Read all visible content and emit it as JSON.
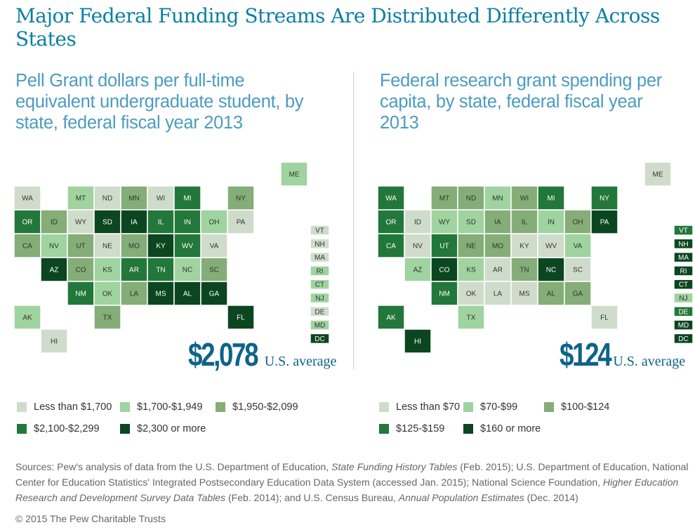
{
  "title": "Major Federal Funding Streams Are Distributed Differently Across States",
  "colors": [
    "#d0dccb",
    "#9fd39f",
    "#85ad77",
    "#22773a",
    "#0b4620"
  ],
  "text_dark_threshold": 3,
  "panels": [
    {
      "subtitle": "Pell Grant dollars per full-time equivalent undergraduate student, by state, federal fiscal year 2013",
      "average_value": "$2,078",
      "average_label": "U.S. average",
      "legend": [
        "Less than $1,700",
        "$1,700-$1,949",
        "$1,950-$2,099",
        "$2,100-$2,299",
        "$2,300 or more"
      ],
      "states": {
        "WA": 0,
        "OR": 3,
        "CA": 2,
        "NV": 1,
        "ID": 2,
        "MT": 1,
        "WY": 0,
        "UT": 2,
        "AZ": 4,
        "CO": 2,
        "NM": 3,
        "ND": 0,
        "SD": 4,
        "NE": 0,
        "KS": 1,
        "OK": 1,
        "TX": 2,
        "MN": 2,
        "IA": 4,
        "MO": 2,
        "AR": 3,
        "LA": 2,
        "WI": 0,
        "IL": 3,
        "MI": 3,
        "IN": 3,
        "OH": 1,
        "KY": 4,
        "TN": 3,
        "MS": 4,
        "AL": 4,
        "GA": 4,
        "FL": 4,
        "SC": 2,
        "NC": 1,
        "VA": 0,
        "WV": 3,
        "PA": 0,
        "NY": 2,
        "ME": 1,
        "AK": 1,
        "HI": 0
      },
      "side_states": [
        [
          "VT",
          0
        ],
        [
          "NH",
          0
        ],
        [
          "MA",
          0
        ],
        [
          "RI",
          1
        ],
        [
          "CT",
          1
        ],
        [
          "NJ",
          1
        ],
        [
          "DE",
          0
        ],
        [
          "MD",
          1
        ],
        [
          "DC",
          4
        ]
      ]
    },
    {
      "subtitle": "Federal research grant spending per capita, by state, federal fiscal year 2013",
      "average_value": "$124",
      "average_label": "U.S. average",
      "legend": [
        "Less than $70",
        "$70-$99",
        "$100-$124",
        "$125-$159",
        "$160 or more"
      ],
      "states": {
        "WA": 3,
        "OR": 3,
        "CA": 3,
        "NV": 0,
        "ID": 0,
        "MT": 2,
        "WY": 1,
        "UT": 3,
        "AZ": 1,
        "CO": 4,
        "NM": 3,
        "ND": 2,
        "SD": 1,
        "NE": 2,
        "KS": 1,
        "OK": 0,
        "TX": 1,
        "MN": 1,
        "IA": 2,
        "MO": 2,
        "AR": 0,
        "LA": 0,
        "WI": 2,
        "IL": 2,
        "MI": 3,
        "IN": 1,
        "OH": 2,
        "KY": 0,
        "TN": 2,
        "MS": 0,
        "AL": 2,
        "GA": 2,
        "FL": 0,
        "SC": 0,
        "NC": 4,
        "VA": 1,
        "WV": 0,
        "PA": 4,
        "NY": 3,
        "ME": 0,
        "AK": 3,
        "HI": 4
      },
      "side_states": [
        [
          "VT",
          3
        ],
        [
          "NH",
          4
        ],
        [
          "MA",
          4
        ],
        [
          "RI",
          4
        ],
        [
          "CT",
          4
        ],
        [
          "NJ",
          1
        ],
        [
          "DE",
          3
        ],
        [
          "MD",
          4
        ],
        [
          "DC",
          4
        ]
      ]
    }
  ],
  "sources_prefix": "Sources: Pew's analysis of data from the U.S. Department of Education, ",
  "sources_italic1": "State Funding History Tables",
  "sources_mid1": " (Feb. 2015); U.S. Department of Education, National Center for Education Statistics' Integrated Postsecondary Education Data System (accessed Jan. 2015); National Science Foundation, ",
  "sources_italic2": "Higher Education Research and Development Survey Data Tables",
  "sources_mid2": " (Feb. 2014); and U.S. Census Bureau, ",
  "sources_italic3": "Annual Population Estimates",
  "sources_end": " (Dec. 2014)",
  "copyright": "© 2015 The Pew Charitable Trusts"
}
